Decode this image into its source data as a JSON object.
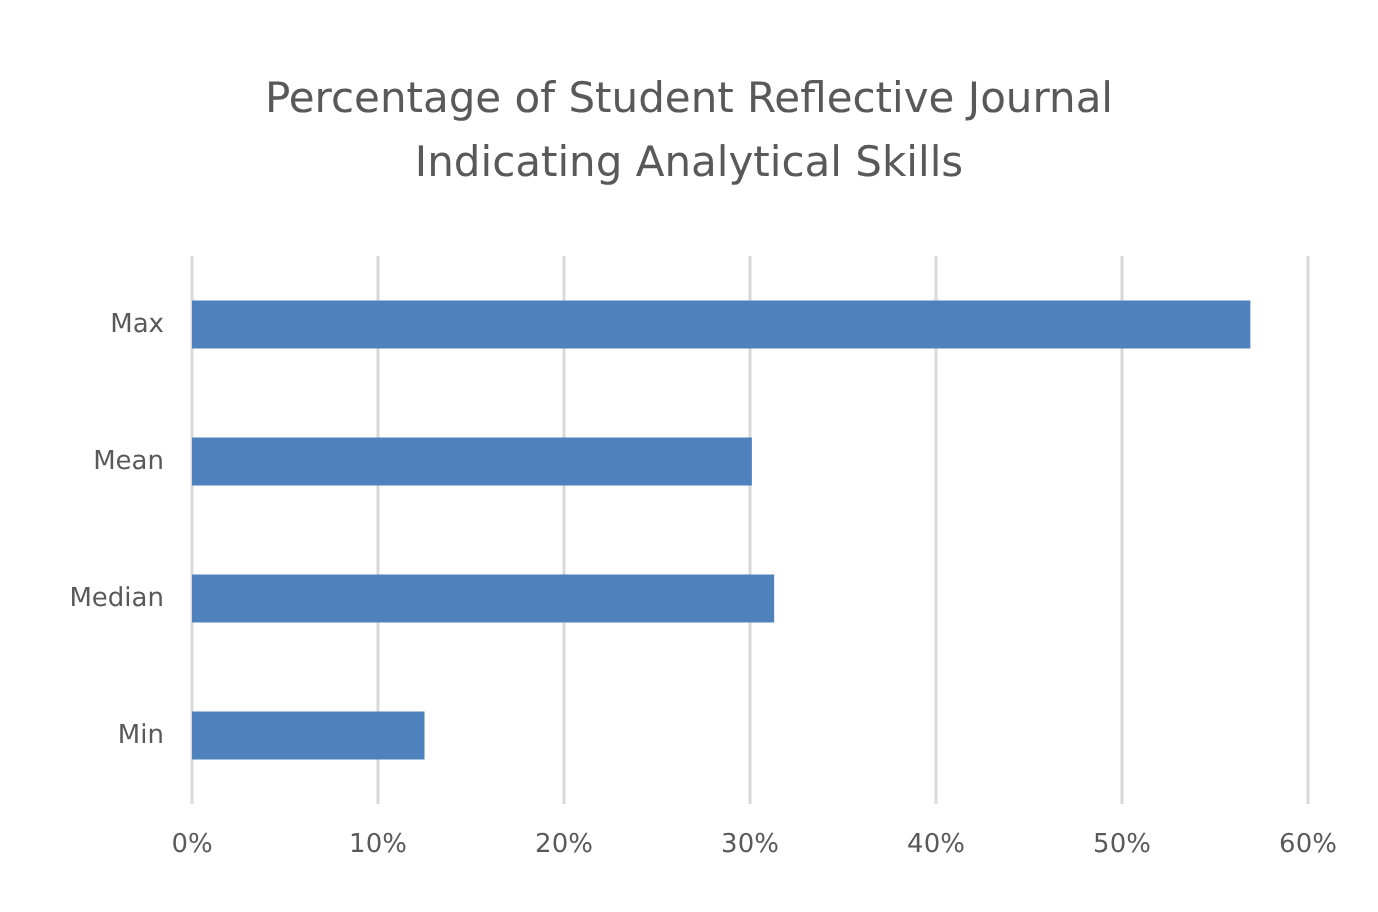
{
  "chart_data": {
    "type": "bar",
    "orientation": "horizontal",
    "title": "Percentage of Student Reflective Journal\nIndicating Analytical Skills",
    "categories": [
      "Max",
      "Mean",
      "Median",
      "Min"
    ],
    "values": [
      56.9,
      30.1,
      31.3,
      12.5
    ],
    "color": "#4f81bd",
    "xlim": [
      0,
      60
    ],
    "xticks": [
      {
        "value": 0,
        "label": "0%"
      },
      {
        "value": 10,
        "label": "10%"
      },
      {
        "value": 20,
        "label": "20%"
      },
      {
        "value": 30,
        "label": "30%"
      },
      {
        "value": 40,
        "label": "40%"
      },
      {
        "value": 50,
        "label": "50%"
      },
      {
        "value": 60,
        "label": "60%"
      }
    ],
    "grid": "x"
  }
}
